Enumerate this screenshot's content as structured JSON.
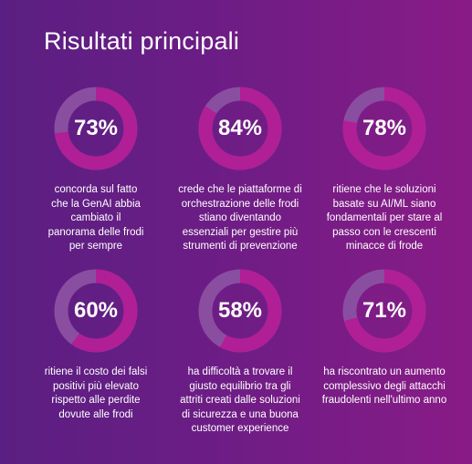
{
  "title": "Risultati principali",
  "colors": {
    "ring": "#b01f95",
    "track": "#8a4ea1"
  },
  "stats": [
    {
      "percent": 73,
      "label": "73%",
      "text": "concorda sul fatto\nche la GenAI abbia\ncambiato il\npanorama delle frodi\nper sempre"
    },
    {
      "percent": 84,
      "label": "84%",
      "text": "crede che le piattaforme di\norchestrazione delle frodi\nstiano diventando\nessenziali per gestire più\nstrumenti di prevenzione"
    },
    {
      "percent": 78,
      "label": "78%",
      "text": "ritiene che le soluzioni\nbasate su AI/ML siano\nfondamentali per stare al\npasso con le crescenti\nminacce di frode"
    },
    {
      "percent": 60,
      "label": "60%",
      "text": "ritiene il costo dei falsi\npositivi più elevato\nrispetto alle perdite\ndovute alle frodi"
    },
    {
      "percent": 58,
      "label": "58%",
      "text": "ha difficoltà a trovare il\ngiusto equilibrio tra gli\nattriti creati dalle soluzioni\ndi sicurezza e una buona\ncustomer experience"
    },
    {
      "percent": 71,
      "label": "71%",
      "text": "ha riscontrato un aumento\ncomplessivo degli attacchi\nfraudolenti nell'ultimo anno"
    }
  ]
}
